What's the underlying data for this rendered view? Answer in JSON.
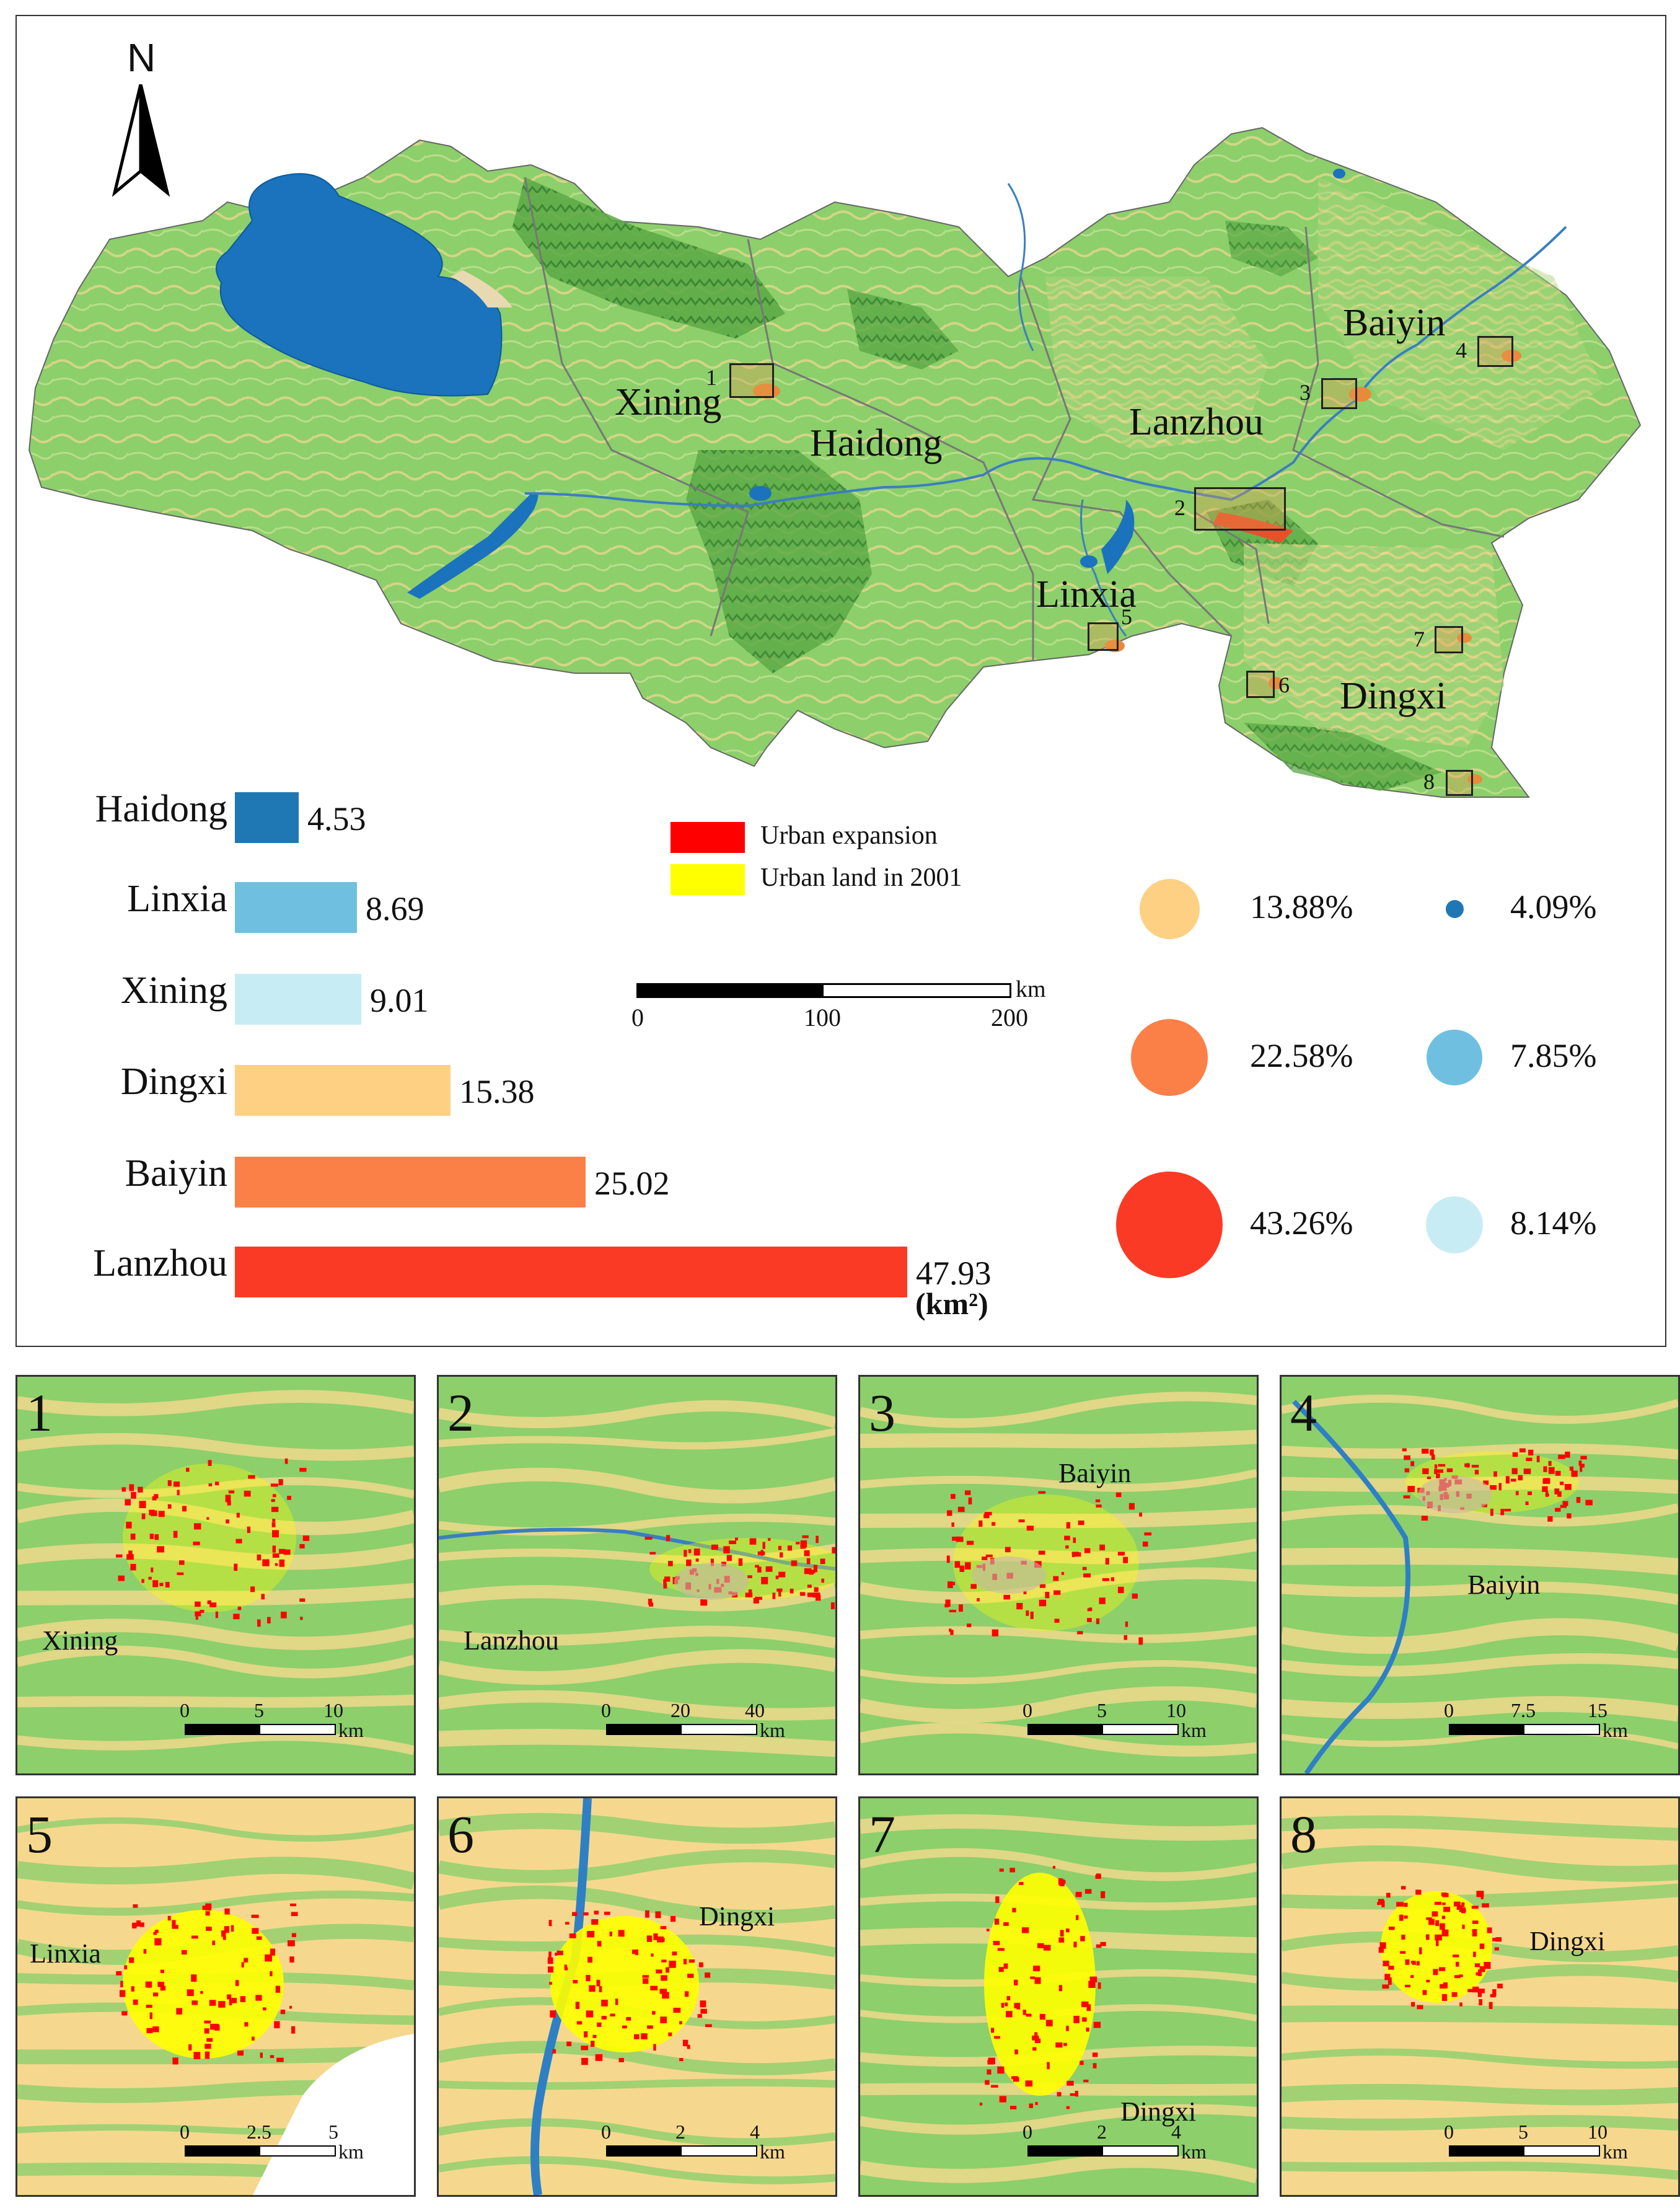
{
  "north_arrow": {
    "label": "N"
  },
  "map": {
    "cities": [
      {
        "name": "Xining"
      },
      {
        "name": "Haidong"
      },
      {
        "name": "Lanzhou"
      },
      {
        "name": "Baiyin"
      },
      {
        "name": "Linxia"
      },
      {
        "name": "Dingxi"
      }
    ],
    "zoom_boxes": [
      "1",
      "2",
      "3",
      "4",
      "5",
      "6",
      "7",
      "8"
    ]
  },
  "legend": {
    "items": [
      {
        "label": "Urban expansion",
        "color": "#ff0000"
      },
      {
        "label": "Urban land in 2001",
        "color": "#ffff00"
      }
    ]
  },
  "scale_bar": {
    "ticks": [
      "0",
      "100",
      "200"
    ],
    "unit": "km"
  },
  "chart_data": {
    "type": "bar",
    "categories": [
      "Haidong",
      "Linxia",
      "Xining",
      "Dingxi",
      "Baiyin",
      "Lanzhou"
    ],
    "values": [
      4.53,
      8.69,
      9.01,
      15.38,
      25.02,
      47.93
    ],
    "value_labels": [
      "4.53",
      "8.69",
      "9.01",
      "15.38",
      "25.02",
      "47.93"
    ],
    "colors": [
      "#1f78b4",
      "#6fc0e0",
      "#c8ecf3",
      "#fdd083",
      "#fb8048",
      "#fb3a25"
    ],
    "unit": "(km²)",
    "xlim": [
      0,
      47.93
    ]
  },
  "percent_circles": {
    "left": [
      {
        "label": "13.88%",
        "color": "#fdd083",
        "value": 13.88
      },
      {
        "label": "22.58%",
        "color": "#fb8048",
        "value": 22.58
      },
      {
        "label": "43.26%",
        "color": "#fb3a25",
        "value": 43.26
      }
    ],
    "right": [
      {
        "label": "4.09%",
        "color": "#1f78b4",
        "value": 4.09
      },
      {
        "label": "7.85%",
        "color": "#6fc0e0",
        "value": 7.85
      },
      {
        "label": "8.14%",
        "color": "#c8ecf3",
        "value": 8.14
      }
    ]
  },
  "panels": [
    {
      "num": "1",
      "city": "Xining",
      "scale": [
        "0",
        "5",
        "10"
      ],
      "unit": "km"
    },
    {
      "num": "2",
      "city": "Lanzhou",
      "scale": [
        "0",
        "20",
        "40"
      ],
      "unit": "km"
    },
    {
      "num": "3",
      "city": "Baiyin",
      "scale": [
        "0",
        "5",
        "10"
      ],
      "unit": "km"
    },
    {
      "num": "4",
      "city": "Baiyin",
      "scale": [
        "0",
        "7.5",
        "15"
      ],
      "unit": "km"
    },
    {
      "num": "5",
      "city": "Linxia",
      "scale": [
        "0",
        "2.5",
        "5"
      ],
      "unit": "km"
    },
    {
      "num": "6",
      "city": "Dingxi",
      "scale": [
        "0",
        "2",
        "4"
      ],
      "unit": "km"
    },
    {
      "num": "7",
      "city": "Dingxi",
      "scale": [
        "0",
        "2",
        "4"
      ],
      "unit": "km"
    },
    {
      "num": "8",
      "city": "Dingxi",
      "scale": [
        "0",
        "5",
        "10"
      ],
      "unit": "km"
    }
  ]
}
